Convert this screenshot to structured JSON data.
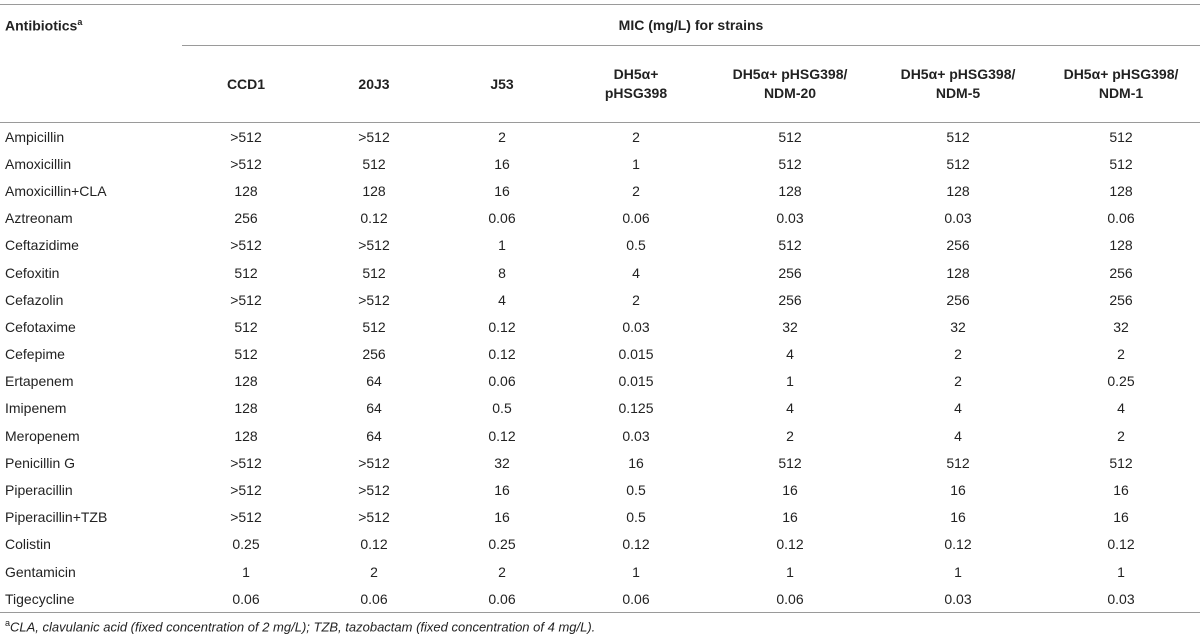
{
  "table": {
    "antibiotics_header": "Antibiotics",
    "antibiotics_header_sup": "a",
    "mic_header": "MIC (mg/L) for strains",
    "strains": [
      {
        "line1": "CCD1",
        "line2": ""
      },
      {
        "line1": "20J3",
        "line2": ""
      },
      {
        "line1": "J53",
        "line2": ""
      },
      {
        "line1": "DH5α+",
        "line2": "pHSG398"
      },
      {
        "line1": "DH5α+ pHSG398/",
        "line2": "NDM-20"
      },
      {
        "line1": "DH5α+ pHSG398/",
        "line2": "NDM-5"
      },
      {
        "line1": "DH5α+ pHSG398/",
        "line2": "NDM-1"
      }
    ],
    "rows": [
      {
        "antibiotic": "Ampicillin",
        "values": [
          ">512",
          ">512",
          "2",
          "2",
          "512",
          "512",
          "512"
        ]
      },
      {
        "antibiotic": "Amoxicillin",
        "values": [
          ">512",
          "512",
          "16",
          "1",
          "512",
          "512",
          "512"
        ]
      },
      {
        "antibiotic": "Amoxicillin+CLA",
        "values": [
          "128",
          "128",
          "16",
          "2",
          "128",
          "128",
          "128"
        ]
      },
      {
        "antibiotic": "Aztreonam",
        "values": [
          "256",
          "0.12",
          "0.06",
          "0.06",
          "0.03",
          "0.03",
          "0.06"
        ]
      },
      {
        "antibiotic": "Ceftazidime",
        "values": [
          ">512",
          ">512",
          "1",
          "0.5",
          "512",
          "256",
          "128"
        ]
      },
      {
        "antibiotic": "Cefoxitin",
        "values": [
          "512",
          "512",
          "8",
          "4",
          "256",
          "128",
          "256"
        ]
      },
      {
        "antibiotic": "Cefazolin",
        "values": [
          ">512",
          ">512",
          "4",
          "2",
          "256",
          "256",
          "256"
        ]
      },
      {
        "antibiotic": "Cefotaxime",
        "values": [
          "512",
          "512",
          "0.12",
          "0.03",
          "32",
          "32",
          "32"
        ]
      },
      {
        "antibiotic": "Cefepime",
        "values": [
          "512",
          "256",
          "0.12",
          "0.015",
          "4",
          "2",
          "2"
        ]
      },
      {
        "antibiotic": "Ertapenem",
        "values": [
          "128",
          "64",
          "0.06",
          "0.015",
          "1",
          "2",
          "0.25"
        ]
      },
      {
        "antibiotic": "Imipenem",
        "values": [
          "128",
          "64",
          "0.5",
          "0.125",
          "4",
          "4",
          "4"
        ]
      },
      {
        "antibiotic": "Meropenem",
        "values": [
          "128",
          "64",
          "0.12",
          "0.03",
          "2",
          "4",
          "2"
        ]
      },
      {
        "antibiotic": "Penicillin G",
        "values": [
          ">512",
          ">512",
          "32",
          "16",
          "512",
          "512",
          "512"
        ]
      },
      {
        "antibiotic": "Piperacillin",
        "values": [
          ">512",
          ">512",
          "16",
          "0.5",
          "16",
          "16",
          "16"
        ]
      },
      {
        "antibiotic": "Piperacillin+TZB",
        "values": [
          ">512",
          ">512",
          "16",
          "0.5",
          "16",
          "16",
          "16"
        ]
      },
      {
        "antibiotic": "Colistin",
        "values": [
          "0.25",
          "0.12",
          "0.25",
          "0.12",
          "0.12",
          "0.12",
          "0.12"
        ]
      },
      {
        "antibiotic": "Gentamicin",
        "values": [
          "1",
          "2",
          "2",
          "1",
          "1",
          "1",
          "1"
        ]
      },
      {
        "antibiotic": "Tigecycline",
        "values": [
          "0.06",
          "0.06",
          "0.06",
          "0.06",
          "0.06",
          "0.03",
          "0.03"
        ]
      }
    ]
  },
  "footnote": {
    "marker": "a",
    "text": "CLA, clavulanic acid (fixed concentration of 2 mg/L); TZB, tazobactam (fixed concentration of 4 mg/L)."
  }
}
